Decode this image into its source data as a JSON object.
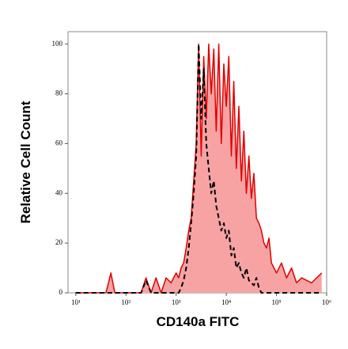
{
  "chart_data": {
    "type": "histogram-line",
    "x_label": "CD140a FITC",
    "y_label": "Relative Cell Count",
    "xscale": "log",
    "xlim": [
      7,
      1000000
    ],
    "ylim": [
      0,
      105
    ],
    "xticks": [
      {
        "value": 10,
        "label": "10¹"
      },
      {
        "value": 100,
        "label": "10²"
      },
      {
        "value": 1000,
        "label": "10³"
      },
      {
        "value": 10000,
        "label": "10⁴"
      },
      {
        "value": 100000,
        "label": "10⁵"
      },
      {
        "value": 1000000,
        "label": "10⁶"
      }
    ],
    "yticks": [
      0,
      20,
      40,
      60,
      80,
      100
    ],
    "x": [
      10,
      40,
      50,
      60,
      100,
      200,
      251,
      316,
      398,
      501,
      631,
      794,
      1000,
      1122,
      1259,
      1413,
      1585,
      1778,
      1995,
      2239,
      2512,
      2818,
      3162,
      3548,
      3981,
      4467,
      5012,
      5623,
      6310,
      7079,
      7943,
      8913,
      10000,
      11220,
      12589,
      14125,
      15849,
      17783,
      19953,
      22387,
      25119,
      28184,
      31623,
      35481,
      39811,
      44668,
      50119,
      56234,
      63096,
      70795,
      79433,
      89125,
      100000,
      125893,
      158489,
      199526,
      251189,
      316228,
      501187,
      794328
    ],
    "series": [
      {
        "color": "#e00000",
        "fill": "#f7a3a3",
        "line_style": "solid",
        "values": [
          0,
          0,
          8,
          0,
          0,
          0,
          6,
          0,
          6,
          0,
          6,
          4,
          8,
          6,
          10,
          12,
          18,
          25,
          30,
          45,
          60,
          100,
          55,
          95,
          70,
          100,
          80,
          98,
          65,
          100,
          60,
          92,
          75,
          95,
          55,
          85,
          50,
          75,
          45,
          65,
          40,
          55,
          38,
          48,
          30,
          28,
          25,
          20,
          18,
          22,
          12,
          10,
          8,
          12,
          6,
          10,
          4,
          6,
          4,
          8
        ]
      },
      {
        "color": "#000000",
        "line_style": "dashed",
        "values": [
          0,
          0,
          0,
          0,
          0,
          0,
          5,
          0,
          0,
          0,
          0,
          0,
          0,
          0,
          2,
          5,
          10,
          18,
          28,
          40,
          55,
          100,
          70,
          90,
          60,
          50,
          40,
          45,
          35,
          30,
          25,
          28,
          22,
          25,
          15,
          18,
          10,
          12,
          8,
          6,
          10,
          5,
          4,
          3,
          6,
          2,
          0,
          0,
          0,
          0,
          0,
          0,
          0,
          0,
          0,
          0,
          0,
          0,
          0,
          0
        ]
      }
    ]
  }
}
